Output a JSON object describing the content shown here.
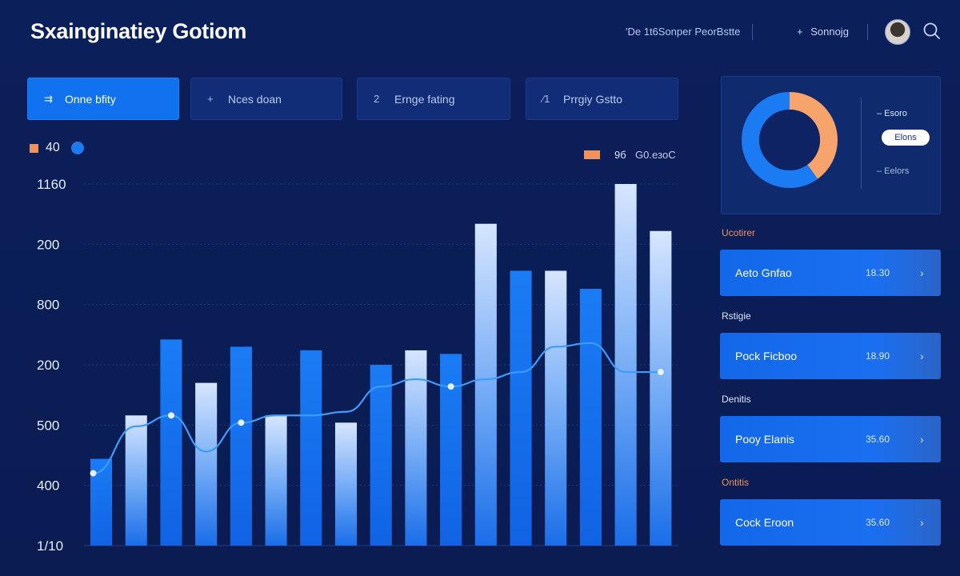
{
  "header": {
    "title": "Sxainginatiey Gotiom",
    "link": "'De 1t6Sonper PeorBstte",
    "action_icon": "+",
    "action": "Sonnojg"
  },
  "tabs": [
    {
      "icon": "⇉",
      "label": "Onne bfity",
      "active": true
    },
    {
      "icon": "+",
      "label": "Nces doan",
      "active": false
    },
    {
      "icon": "2",
      "label": "Ernge fating",
      "active": false
    },
    {
      "icon": "⁄1",
      "label": "Prrgiy Gstto",
      "active": false
    }
  ],
  "legend_left": {
    "value": "40"
  },
  "legend_right": {
    "a": "9б",
    "b": "G0.eзоС"
  },
  "chart_data": {
    "type": "bar",
    "y_tick_labels": [
      "1160",
      "200",
      "800",
      "200",
      "500",
      "400",
      "1/10"
    ],
    "ylim": [
      0,
      100
    ],
    "grid": true,
    "series": [
      {
        "type": "bar",
        "values": [
          24,
          36,
          57,
          45,
          55,
          36,
          54,
          34,
          50,
          54,
          53,
          89,
          76,
          76,
          71,
          100,
          87
        ]
      },
      {
        "type": "line",
        "values": [
          20,
          33,
          36,
          26,
          34,
          36,
          36,
          37,
          44,
          46,
          44,
          46,
          48,
          55,
          56,
          48,
          48
        ]
      }
    ],
    "colors": {
      "bar": "#1576f2",
      "bar_light": "#cfe0ff",
      "line": "#3d9cff"
    }
  },
  "donut": {
    "slices": [
      {
        "value": 40,
        "color": "#f6a46c"
      },
      {
        "value": 60,
        "color": "#1b7bf2"
      }
    ],
    "legend_1": "– Esoro",
    "pill": "Elons",
    "legend_2": "– Eelors"
  },
  "list": [
    {
      "section": "Ucotirer",
      "section_color": "#f0935a",
      "name": "Aeto Gnfao",
      "amount": "18.30"
    },
    {
      "section": "Rstigie",
      "section_color": "#dbe5ff",
      "name": "Pock Ficboo",
      "amount": "18.90"
    },
    {
      "section": "Denitis",
      "section_color": "#dbe5ff",
      "name": "Pooy Elanis",
      "amount": "35.60"
    },
    {
      "section": "Ontitis",
      "section_color": "#f0935a",
      "name": "Cock Eroon",
      "amount": "35.60"
    }
  ],
  "icons": {
    "search": "search-icon",
    "avatar": "avatar",
    "chevron": "chevron-right-icon"
  }
}
